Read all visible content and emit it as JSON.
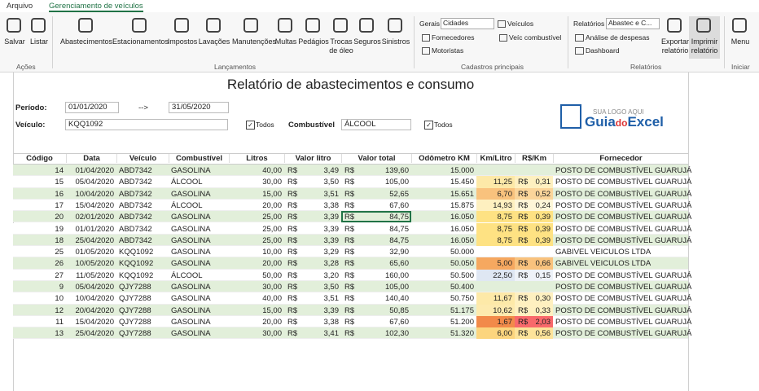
{
  "ribbon": {
    "tabs": [
      "Arquivo",
      "Gerenciamento de veículos"
    ],
    "acoes": {
      "buttons": [
        "Salvar",
        "Listar"
      ],
      "label": "Ações"
    },
    "lancamentos": {
      "buttons": [
        "Abastecimentos",
        "Estacionamentos",
        "Impostos",
        "Lavações",
        "Manutenções",
        "Multas",
        "Pedágios",
        "Trocas de óleo",
        "Seguros",
        "Sinistros"
      ],
      "label": "Lançamentos"
    },
    "cadastros": {
      "gerais": "Gerais",
      "select": "Cidades",
      "links": [
        "Veículos",
        "Fornecedores",
        "Veíc combustível",
        "Motoristas"
      ],
      "label": "Cadastros principais"
    },
    "relatorios": {
      "title": "Relatórios",
      "select": "Abastec e C...",
      "links": [
        "Análise de despesas",
        "Dashboard"
      ],
      "buttons": [
        "Exportar relatório",
        "Imprimir relatório"
      ],
      "label": "Relatórios"
    },
    "iniciar": {
      "buttons": [
        "Menu"
      ],
      "label": "Iniciar"
    }
  },
  "report": {
    "title": "Relatório de abastecimentos e consumo",
    "period_label": "Período:",
    "start": "01/01/2020",
    "arrow": "-->",
    "end": "31/05/2020",
    "vehicle_label": "Veículo:",
    "vehicle": "KQQ1092",
    "all": "Todos",
    "fuel_label": "Combustível",
    "fuel": "ÁLCOOL",
    "logo": {
      "tagline": "SUA LOGO AQUI",
      "guia": "Guia",
      "do": "do",
      "excel": "Excel"
    }
  },
  "table": {
    "headers": [
      "Código",
      "Data",
      "Veículo",
      "Combustível",
      "Litros",
      "Valor litro",
      "Valor total",
      "Odômetro KM",
      "Km/Litro",
      "R$/Km",
      "Fornecedor"
    ],
    "currency": "R$",
    "rows": [
      [
        "14",
        "01/04/2020",
        "ABD7342",
        "GASOLINA",
        "40,00",
        "3,49",
        "139,60",
        "15.000",
        null,
        null,
        "POSTO DE COMBUSTÍVEL GUARUJÁ"
      ],
      [
        "15",
        "05/04/2020",
        "ABD7342",
        "ÁLCOOL",
        "30,00",
        "3,50",
        "105,00",
        "15.450",
        "11,25",
        "0,31",
        "POSTO DE COMBUSTÍVEL GUARUJÁ"
      ],
      [
        "16",
        "10/04/2020",
        "ABD7342",
        "GASOLINA",
        "15,00",
        "3,51",
        "52,65",
        "15.651",
        "6,70",
        "0,52",
        "POSTO DE COMBUSTÍVEL GUARUJÁ"
      ],
      [
        "17",
        "15/04/2020",
        "ABD7342",
        "ÁLCOOL",
        "20,00",
        "3,38",
        "67,60",
        "15.875",
        "14,93",
        "0,24",
        "POSTO DE COMBUSTÍVEL GUARUJÁ"
      ],
      [
        "20",
        "02/01/2020",
        "ABD7342",
        "GASOLINA",
        "25,00",
        "3,39",
        "84,75",
        "16.050",
        "8,75",
        "0,39",
        "POSTO DE COMBUSTÍVEL GUARUJÁ"
      ],
      [
        "19",
        "01/01/2020",
        "ABD7342",
        "GASOLINA",
        "25,00",
        "3,39",
        "84,75",
        "16.050",
        "8,75",
        "0,39",
        "POSTO DE COMBUSTÍVEL GUARUJÁ"
      ],
      [
        "18",
        "25/04/2020",
        "ABD7342",
        "GASOLINA",
        "25,00",
        "3,39",
        "84,75",
        "16.050",
        "8,75",
        "0,39",
        "POSTO DE COMBUSTÍVEL GUARUJÁ"
      ],
      [
        "25",
        "01/05/2020",
        "KQQ1092",
        "GASOLINA",
        "10,00",
        "3,29",
        "32,90",
        "50.000",
        null,
        null,
        "GABIVEL VEICULOS LTDA"
      ],
      [
        "26",
        "10/05/2020",
        "KQQ1092",
        "GASOLINA",
        "20,00",
        "3,28",
        "65,60",
        "50.050",
        "5,00",
        "0,66",
        "GABIVEL VEICULOS LTDA"
      ],
      [
        "27",
        "11/05/2020",
        "KQQ1092",
        "ÁLCOOL",
        "50,00",
        "3,20",
        "160,00",
        "50.500",
        "22,50",
        "0,15",
        "POSTO DE COMBUSTÍVEL GUARUJÁ"
      ],
      [
        "9",
        "05/04/2020",
        "QJY7288",
        "GASOLINA",
        "30,00",
        "3,50",
        "105,00",
        "50.400",
        null,
        null,
        "POSTO DE COMBUSTÍVEL GUARUJÁ"
      ],
      [
        "10",
        "10/04/2020",
        "QJY7288",
        "GASOLINA",
        "40,00",
        "3,51",
        "140,40",
        "50.750",
        "11,67",
        "0,30",
        "POSTO DE COMBUSTÍVEL GUARUJÁ"
      ],
      [
        "12",
        "20/04/2020",
        "QJY7288",
        "GASOLINA",
        "15,00",
        "3,39",
        "50,85",
        "51.175",
        "10,62",
        "0,33",
        "POSTO DE COMBUSTÍVEL GUARUJÁ"
      ],
      [
        "11",
        "15/04/2020",
        "QJY7288",
        "GASOLINA",
        "20,00",
        "3,38",
        "67,60",
        "51.200",
        "1,67",
        "2,03",
        "POSTO DE COMBUSTÍVEL GUARUJÁ"
      ],
      [
        "13",
        "25/04/2020",
        "QJY7288",
        "GASOLINA",
        "30,00",
        "3,41",
        "102,30",
        "51.320",
        "6,00",
        "0,56",
        "POSTO DE COMBUSTÍVEL GUARUJÁ"
      ]
    ],
    "km_fill": [
      null,
      "#fde9a8",
      "#f9c27d",
      "#fef0c0",
      "#fee283",
      "#fee283",
      "#fee283",
      null,
      "#f6a860",
      "#dfe7f3",
      null,
      "#fde9a8",
      "#fdeaae",
      "#f28a4a",
      "#fcd57e"
    ],
    "rs_fill": [
      null,
      "#fef0c0",
      "#fbd59a",
      "#fef6d8",
      "#fee283",
      "#fee283",
      "#fee283",
      null,
      "#f9c27d",
      "#eef2f8",
      null,
      "#fef0c0",
      "#fef0c0",
      "#f8696b",
      "#fde39a"
    ]
  }
}
